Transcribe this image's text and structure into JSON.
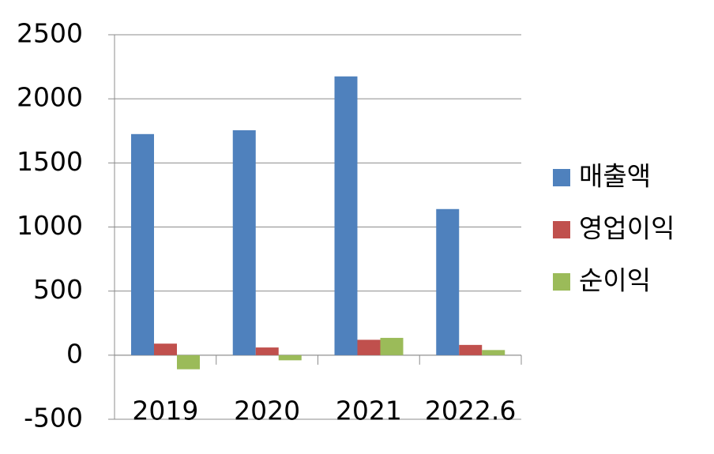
{
  "chart_data": {
    "type": "bar",
    "categories": [
      "2019",
      "2020",
      "2021",
      "2022.6"
    ],
    "series": [
      {
        "name": "매출액",
        "color": "#4f81bd",
        "values": [
          1725,
          1755,
          2175,
          1140
        ]
      },
      {
        "name": "영업이익",
        "color": "#c0504d",
        "values": [
          90,
          60,
          120,
          80
        ]
      },
      {
        "name": "순이익",
        "color": "#9bbb59",
        "values": [
          -110,
          -40,
          135,
          40
        ]
      }
    ],
    "ylim": [
      -500,
      2500
    ],
    "yticks": [
      -500,
      0,
      500,
      1000,
      1500,
      2000,
      2500
    ],
    "grid": true,
    "legend": "right"
  }
}
